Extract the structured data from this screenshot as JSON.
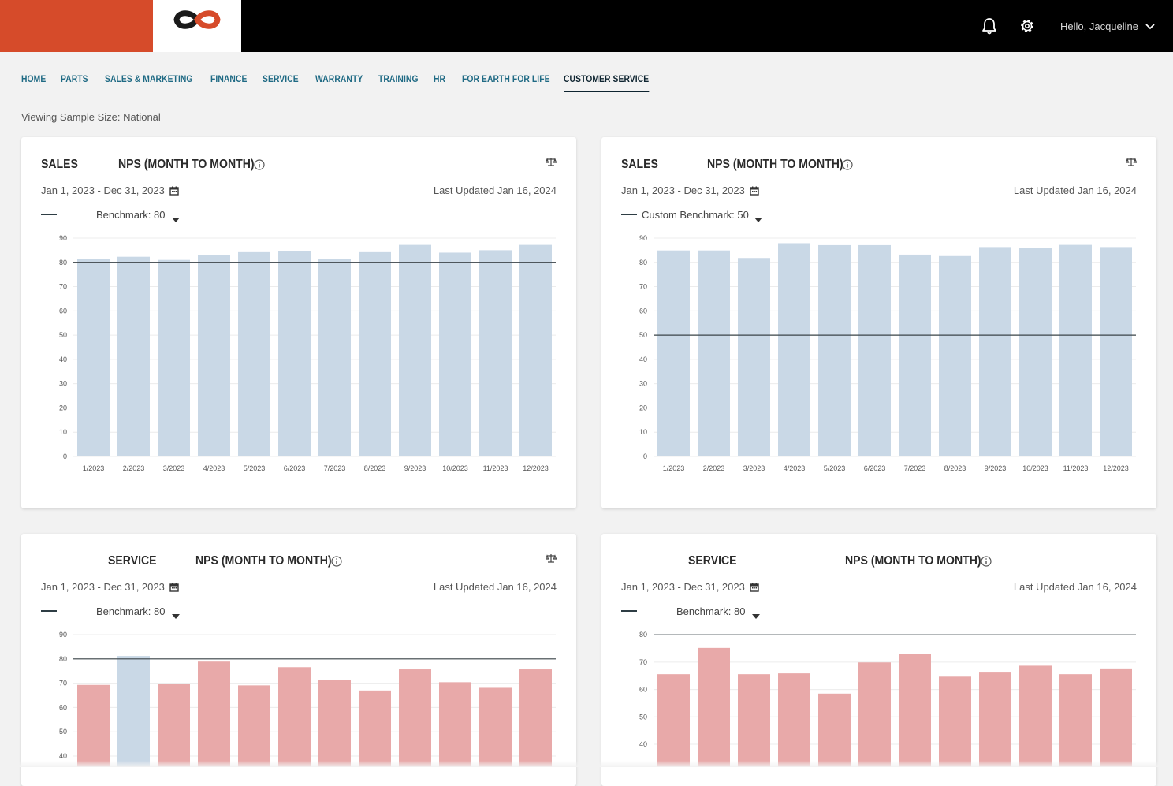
{
  "header": {
    "greeting": "Hello, Jacqueline",
    "icons": [
      "bell-icon",
      "gear-icon",
      "chevron-down-icon"
    ],
    "brand_color": "#d64b2a"
  },
  "nav": {
    "items": [
      "HOME",
      "PARTS",
      "SALES & MARKETING",
      "FINANCE",
      "SERVICE",
      "WARRANTY",
      "TRAINING",
      "HR",
      "FOR EARTH FOR LIFE",
      "CUSTOMER SERVICE"
    ],
    "active": "CUSTOMER SERVICE"
  },
  "sample_size": "Viewing Sample Size: National",
  "colors": {
    "bar_blue": "#c9d8e6",
    "bar_red": "#e8a9a9",
    "benchmark_line": "#3b4448"
  },
  "cards": [
    {
      "dept": "SALES",
      "metric": "NPS (MONTH TO MONTH)",
      "date_range": "Jan 1, 2023 - Dec 31, 2023",
      "updated": "Last Updated Jan 16, 2024",
      "benchmark_label": "Benchmark: 80"
    },
    {
      "dept": "SALES",
      "metric": "NPS (MONTH TO MONTH)",
      "date_range": "Jan 1, 2023 - Dec 31, 2023",
      "updated": "Last Updated Jan 16, 2024",
      "benchmark_label": "Custom Benchmark: 50"
    },
    {
      "dept": "SERVICE",
      "metric": "NPS (MONTH TO MONTH)",
      "date_range": "Jan 1, 2023 - Dec 31, 2023",
      "updated": "Last Updated Jan 16, 2024",
      "benchmark_label": "Benchmark: 80"
    },
    {
      "dept": "SERVICE",
      "metric": "NPS (MONTH TO MONTH)",
      "date_range": "Jan 1, 2023 - Dec 31, 2023",
      "updated": "Last Updated Jan 16, 2024",
      "benchmark_label": "Benchmark: 80"
    }
  ],
  "chart_data": [
    {
      "type": "bar",
      "categories": [
        "1/2023",
        "2/2023",
        "3/2023",
        "4/2023",
        "5/2023",
        "6/2023",
        "7/2023",
        "8/2023",
        "9/2023",
        "10/2023",
        "11/2023",
        "12/2023"
      ],
      "values": [
        81.5,
        82.3,
        81,
        83,
        84.2,
        84.8,
        81.5,
        84.2,
        87.2,
        84,
        85,
        87.2
      ],
      "benchmark": 80,
      "yticks": [
        0,
        10,
        20,
        30,
        40,
        50,
        60,
        70,
        80,
        90
      ],
      "ylim": [
        0,
        90
      ],
      "grid": true
    },
    {
      "type": "bar",
      "categories": [
        "1/2023",
        "2/2023",
        "3/2023",
        "4/2023",
        "5/2023",
        "6/2023",
        "7/2023",
        "8/2023",
        "9/2023",
        "10/2023",
        "11/2023",
        "12/2023"
      ],
      "values": [
        84.9,
        84.9,
        81.8,
        87.9,
        87.1,
        87.1,
        83.2,
        82.6,
        86.3,
        85.9,
        87.2,
        86.3
      ],
      "benchmark": 50,
      "yticks": [
        0,
        10,
        20,
        30,
        40,
        50,
        60,
        70,
        80,
        90
      ],
      "ylim": [
        0,
        90
      ],
      "grid": true
    },
    {
      "type": "bar",
      "values": [
        69.3,
        81.2,
        69.6,
        78.9,
        69.1,
        76.6,
        71.3,
        67,
        75.7,
        70.4,
        68.1,
        75.7
      ],
      "benchmark": 80,
      "yticks": [
        40,
        50,
        60,
        70,
        80,
        90
      ],
      "ylim": [
        0,
        90
      ],
      "grid": true
    },
    {
      "type": "bar",
      "values": [
        65.6,
        75.2,
        65.6,
        65.9,
        58.5,
        69.9,
        72.9,
        64.7,
        66.2,
        68.7,
        65.6,
        67.7
      ],
      "benchmark": 80,
      "yticks": [
        40,
        50,
        60,
        70,
        80
      ],
      "ylim": [
        0,
        80
      ],
      "grid": true
    }
  ]
}
